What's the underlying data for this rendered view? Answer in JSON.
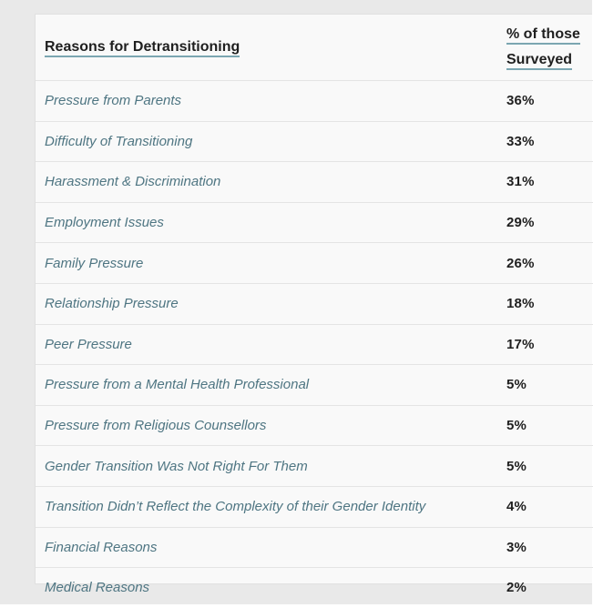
{
  "colors": {
    "page_bg": "#e9e9e9",
    "table_bg": "#f9f9f9",
    "divider": "#e4e4e4",
    "text_dark": "#1f1f1f",
    "accent_teal": "#4e7582",
    "header_underline": "#7ba6b1"
  },
  "table": {
    "header": {
      "reason_label": "Reasons for Detransitioning",
      "value_label": "% of those Surveyed"
    },
    "rows": [
      {
        "reason": "Pressure from Parents",
        "value": "36%"
      },
      {
        "reason": "Difficulty of Transitioning",
        "value": "33%"
      },
      {
        "reason": "Harassment & Discrimination",
        "value": "31%"
      },
      {
        "reason": "Employment Issues",
        "value": "29%"
      },
      {
        "reason": "Family Pressure",
        "value": "26%"
      },
      {
        "reason": "Relationship Pressure",
        "value": "18%"
      },
      {
        "reason": "Peer Pressure",
        "value": "17%"
      },
      {
        "reason": "Pressure from a Mental Health Professional",
        "value": "5%"
      },
      {
        "reason": "Pressure from Religious Counsellors",
        "value": "5%"
      },
      {
        "reason": "Gender Transition Was Not Right For Them",
        "value": "5%"
      },
      {
        "reason": "Transition Didn’t Reflect the Complexity of their Gender Identity",
        "value": "4%"
      },
      {
        "reason": "Financial Reasons",
        "value": "3%"
      },
      {
        "reason": "Medical Reasons",
        "value": "2%"
      }
    ]
  },
  "chart_data": {
    "type": "table",
    "title": "Reasons for Detransitioning",
    "columns": [
      "Reasons for Detransitioning",
      "% of those Surveyed"
    ],
    "categories": [
      "Pressure from Parents",
      "Difficulty of Transitioning",
      "Harassment & Discrimination",
      "Employment Issues",
      "Family Pressure",
      "Relationship Pressure",
      "Peer Pressure",
      "Pressure from a Mental Health Professional",
      "Pressure from Religious Counsellors",
      "Gender Transition Was Not Right For Them",
      "Transition Didn’t Reflect the Complexity of their Gender Identity",
      "Financial Reasons",
      "Medical Reasons"
    ],
    "values": [
      36,
      33,
      31,
      29,
      26,
      18,
      17,
      5,
      5,
      5,
      4,
      3,
      2
    ],
    "unit": "%"
  }
}
